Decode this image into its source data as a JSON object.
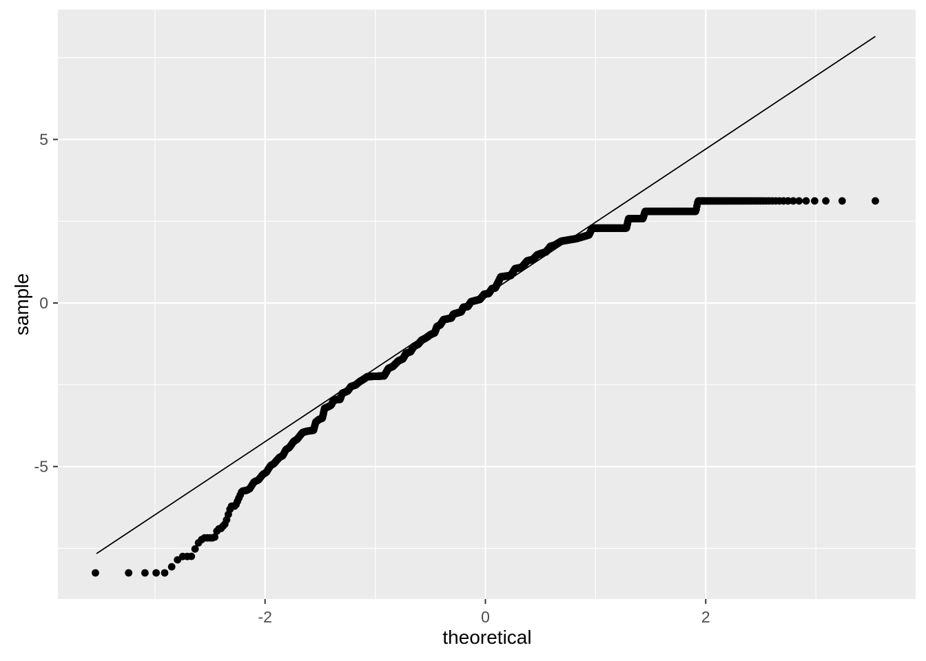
{
  "chart_data": {
    "type": "scatter",
    "subtype": "qq-plot",
    "title": "",
    "xlabel": "theoretical",
    "ylabel": "sample",
    "x_ticks": [
      -2,
      0,
      2
    ],
    "y_ticks": [
      -5,
      0,
      5
    ],
    "x_minor_ticks": [
      -3,
      -1,
      1,
      3
    ],
    "y_minor_ticks": [
      -7.5,
      -2.5,
      2.5,
      7.5
    ],
    "xlim": [
      -3.881,
      3.906
    ],
    "ylim": [
      -9.05,
      8.968
    ],
    "grid": true,
    "legend": false,
    "n_points": 2500,
    "theoretical_quantiles": "qnorm((i - 0.5) / n), i = 1..n",
    "sample_range": [
      -8.25,
      3.12
    ],
    "qq_curve_anchors": [
      [
        -3.54,
        -8.25
      ],
      [
        -2.9,
        -8.25
      ],
      [
        -2.83,
        -8.0
      ],
      [
        -2.77,
        -7.75
      ],
      [
        -2.67,
        -7.75
      ],
      [
        -2.61,
        -7.35
      ],
      [
        -2.56,
        -7.18
      ],
      [
        -2.46,
        -7.18
      ],
      [
        -2.43,
        -6.91
      ],
      [
        -2.4,
        -6.89
      ],
      [
        -2.36,
        -6.74
      ],
      [
        -2.31,
        -6.21
      ],
      [
        -2.27,
        -6.21
      ],
      [
        -2.21,
        -5.75
      ],
      [
        -2.17,
        -5.73
      ],
      [
        -2.14,
        -5.68
      ],
      [
        -2.1,
        -5.47
      ],
      [
        -2.06,
        -5.41
      ],
      [
        -2.02,
        -5.24
      ],
      [
        -1.99,
        -5.18
      ],
      [
        -1.95,
        -4.97
      ],
      [
        -1.92,
        -4.91
      ],
      [
        -1.87,
        -4.72
      ],
      [
        -1.84,
        -4.67
      ],
      [
        -1.81,
        -4.48
      ],
      [
        -1.78,
        -4.42
      ],
      [
        -1.74,
        -4.23
      ],
      [
        -1.71,
        -4.17
      ],
      [
        -1.66,
        -3.96
      ],
      [
        -1.62,
        -3.92
      ],
      [
        -1.56,
        -3.89
      ],
      [
        -1.54,
        -3.64
      ],
      [
        -1.51,
        -3.56
      ],
      [
        -1.48,
        -3.52
      ],
      [
        -1.46,
        -3.22
      ],
      [
        -1.42,
        -3.16
      ],
      [
        -1.4,
        -3.12
      ],
      [
        -1.38,
        -2.99
      ],
      [
        -1.35,
        -2.95
      ],
      [
        -1.32,
        -2.95
      ],
      [
        -1.3,
        -2.76
      ],
      [
        -1.27,
        -2.72
      ],
      [
        -1.25,
        -2.69
      ],
      [
        -1.22,
        -2.55
      ],
      [
        -1.18,
        -2.51
      ],
      [
        -1.14,
        -2.4
      ],
      [
        -1.11,
        -2.34
      ],
      [
        -1.07,
        -2.25
      ],
      [
        -0.92,
        -2.23
      ],
      [
        -0.88,
        -2.0
      ],
      [
        -0.84,
        -1.94
      ],
      [
        -0.79,
        -1.77
      ],
      [
        -0.75,
        -1.71
      ],
      [
        -0.72,
        -1.54
      ],
      [
        -0.68,
        -1.49
      ],
      [
        -0.65,
        -1.33
      ],
      [
        -0.61,
        -1.26
      ],
      [
        -0.58,
        -1.14
      ],
      [
        -0.54,
        -1.07
      ],
      [
        -0.5,
        -0.97
      ],
      [
        -0.46,
        -0.91
      ],
      [
        -0.44,
        -0.72
      ],
      [
        -0.41,
        -0.67
      ],
      [
        -0.38,
        -0.51
      ],
      [
        -0.31,
        -0.46
      ],
      [
        -0.29,
        -0.34
      ],
      [
        -0.22,
        -0.27
      ],
      [
        -0.2,
        -0.13
      ],
      [
        -0.16,
        -0.11
      ],
      [
        -0.13,
        0.04
      ],
      [
        -0.05,
        0.11
      ],
      [
        -0.01,
        0.27
      ],
      [
        0.03,
        0.29
      ],
      [
        0.06,
        0.44
      ],
      [
        0.09,
        0.46
      ],
      [
        0.14,
        0.8
      ],
      [
        0.23,
        0.84
      ],
      [
        0.27,
        1.05
      ],
      [
        0.33,
        1.09
      ],
      [
        0.38,
        1.29
      ],
      [
        0.43,
        1.33
      ],
      [
        0.47,
        1.47
      ],
      [
        0.51,
        1.52
      ],
      [
        0.55,
        1.56
      ],
      [
        0.59,
        1.73
      ],
      [
        0.63,
        1.77
      ],
      [
        0.69,
        1.89
      ],
      [
        0.83,
        1.97
      ],
      [
        0.9,
        2.04
      ],
      [
        0.94,
        2.08
      ],
      [
        0.97,
        2.29
      ],
      [
        1.28,
        2.29
      ],
      [
        1.3,
        2.58
      ],
      [
        1.43,
        2.58
      ],
      [
        1.45,
        2.8
      ],
      [
        1.91,
        2.8
      ],
      [
        1.93,
        3.12
      ],
      [
        3.54,
        3.12
      ]
    ],
    "reference_line": {
      "x1": -3.53,
      "y1": -7.66,
      "x2": 3.54,
      "y2": 8.15
    },
    "point_color": "#000000",
    "point_radius": 5.4,
    "line_color": "#000000",
    "panel_background": "#EBEBEB",
    "grid_color": "#FFFFFF",
    "axis_tick_color": "#333333",
    "tick_label_color": "#4D4D4D",
    "axis_title_color": "#000000"
  }
}
